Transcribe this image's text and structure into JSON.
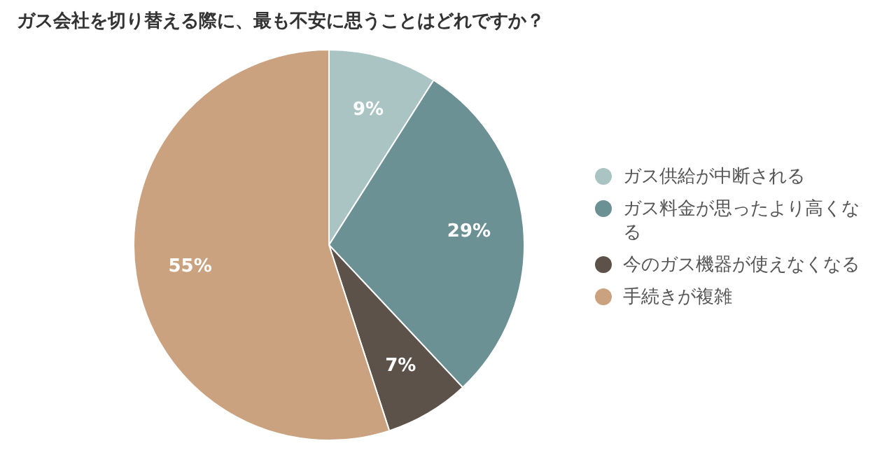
{
  "chart_data": {
    "type": "pie",
    "title": "ガス会社を切り替える際に、最も不安に思うことはどれですか？",
    "categories": [
      "ガス供給が中断される",
      "ガス料金が思ったより高くなる",
      "今のガス機器が使えなくなる",
      "手続きが複雑"
    ],
    "values": [
      9,
      29,
      7,
      55
    ],
    "colors": [
      "#a9c4c3",
      "#6c9194",
      "#5d5249",
      "#caa27f"
    ],
    "value_labels": [
      "9%",
      "29%",
      "7%",
      "55%"
    ],
    "legend": "right"
  }
}
